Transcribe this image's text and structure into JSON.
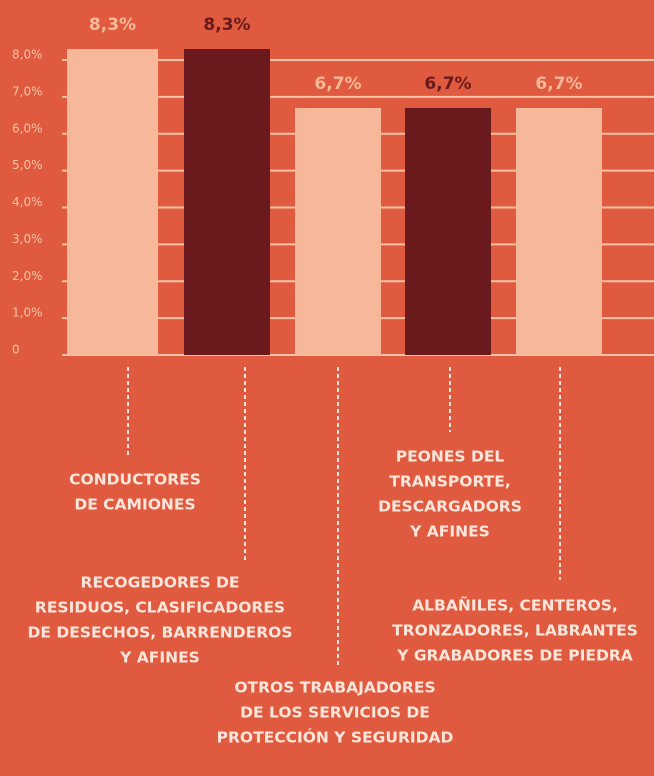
{
  "chart_data": {
    "type": "bar",
    "categories": [
      [
        "CONDUCTORES",
        "DE CAMIONES"
      ],
      [
        "RECOGEDORES DE",
        "RESIDUOS, CLASIFICADORES",
        "DE DESECHOS, BARRENDEROS",
        "Y AFINES"
      ],
      [
        "OTROS TRABAJADORES",
        "DE LOS SERVICIOS DE",
        "PROTECCIÓN Y SEGURIDAD"
      ],
      [
        "PEONES DEL",
        "TRANSPORTE,",
        "DESCARGADORS",
        "Y AFINES"
      ],
      [
        "ALBAÑILES, CENTEROS,",
        "TRONZADORES, LABRANTES",
        "Y GRABADORES DE PIEDRA"
      ]
    ],
    "values": [
      8.3,
      8.3,
      6.7,
      6.7,
      6.7
    ],
    "value_labels": [
      "8,3%",
      "8,3%",
      "6,7%",
      "6,7%",
      "6,7%"
    ],
    "colors": [
      "#f6b899",
      "#6a1a1c",
      "#f6b899",
      "#6a1a1c",
      "#f6b899"
    ],
    "ylim": [
      0,
      8.3
    ],
    "yticks": [
      0,
      {
        "value": 1,
        "label": "1,0%"
      },
      {
        "value": 2,
        "label": "2,0%"
      },
      {
        "value": 3,
        "label": "3,0%"
      },
      {
        "value": 4,
        "label": "4,0%"
      },
      {
        "value": 5,
        "label": "5,0%"
      },
      {
        "value": 6,
        "label": "6,0%"
      },
      {
        "value": 7,
        "label": "7,0%"
      },
      {
        "value": 8,
        "label": "8,0%"
      }
    ],
    "grid": true
  }
}
